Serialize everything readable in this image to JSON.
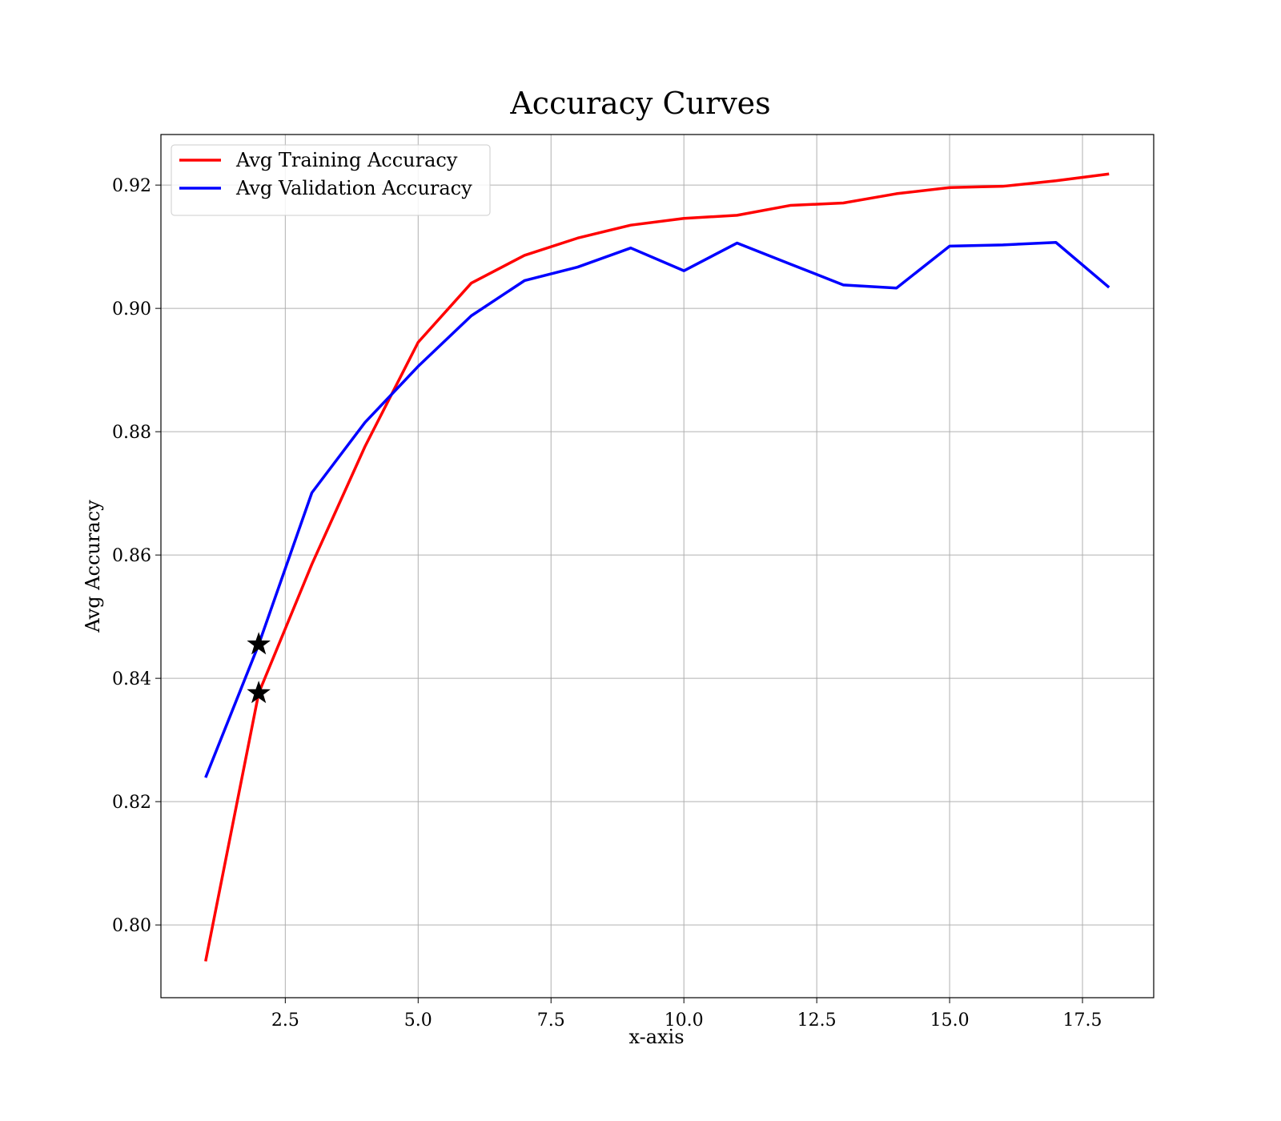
{
  "chart_data": {
    "type": "line",
    "title": "Accuracy Curves",
    "xlabel": "x-axis",
    "ylabel": "Avg Accuracy",
    "xlim": [
      0.16,
      18.84
    ],
    "ylim": [
      0.7882,
      0.9282
    ],
    "x_ticks": [
      2.5,
      5.0,
      7.5,
      10.0,
      12.5,
      15.0,
      17.5
    ],
    "x_tick_labels": [
      "2.5",
      "5.0",
      "7.5",
      "10.0",
      "12.5",
      "15.0",
      "17.5"
    ],
    "y_ticks": [
      0.8,
      0.82,
      0.84,
      0.86,
      0.88,
      0.9,
      0.92
    ],
    "y_tick_labels": [
      "0.80",
      "0.82",
      "0.84",
      "0.86",
      "0.88",
      "0.90",
      "0.92"
    ],
    "grid": true,
    "legend_position": "top-left",
    "x": [
      1,
      2,
      3,
      4,
      5,
      6,
      7,
      8,
      9,
      10,
      11,
      12,
      13,
      14,
      15,
      16,
      17,
      18
    ],
    "series": [
      {
        "name": "Avg Training Accuracy",
        "color": "#ff0000",
        "values": [
          0.7941,
          0.8376,
          0.8585,
          0.8776,
          0.8945,
          0.9041,
          0.9086,
          0.9114,
          0.9135,
          0.9146,
          0.9151,
          0.9167,
          0.9171,
          0.9186,
          0.9196,
          0.9198,
          0.9207,
          0.9218
        ]
      },
      {
        "name": "Avg Validation Accuracy",
        "color": "#0000ff",
        "values": [
          0.8239,
          0.8455,
          0.8701,
          0.8815,
          0.8906,
          0.8988,
          0.9045,
          0.9067,
          0.9098,
          0.9061,
          0.9106,
          0.9072,
          0.9038,
          0.9033,
          0.9101,
          0.9103,
          0.9107,
          0.9034
        ]
      }
    ],
    "markers": [
      {
        "symbol": "star",
        "color": "#000000",
        "x": 2,
        "y": 0.8455
      },
      {
        "symbol": "star",
        "color": "#000000",
        "x": 2,
        "y": 0.8376
      }
    ]
  }
}
